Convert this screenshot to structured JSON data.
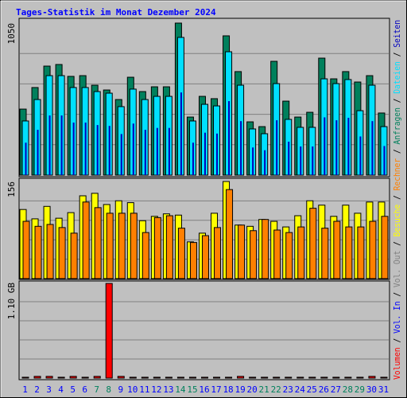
{
  "title": "Tages-Statistik im Monat Dezember 2024",
  "legend_separator": " / ",
  "chart_data": [
    {
      "type": "bar",
      "ylim": [
        0,
        1050
      ],
      "yticks": [
        1050
      ],
      "series": [
        {
          "name": "Anfragen",
          "color": "#00805c",
          "values": [
            456,
            605,
            753,
            764,
            682,
            687,
            621,
            588,
            522,
            676,
            577,
            610,
            610,
            1050,
            401,
            544,
            528,
            962,
            715,
            368,
            335,
            786,
            511,
            401,
            434,
            808,
            665,
            715,
            643,
            687,
            429
          ]
        },
        {
          "name": "Dateien",
          "color": "#00e0ff",
          "values": [
            374,
            522,
            687,
            687,
            605,
            605,
            577,
            566,
            473,
            594,
            522,
            544,
            544,
            951,
            374,
            489,
            478,
            852,
            621,
            319,
            286,
            632,
            385,
            330,
            330,
            665,
            632,
            660,
            445,
            621,
            335
          ]
        },
        {
          "name": "Seiten",
          "color": "#0000c0",
          "values": [
            224,
            313,
            412,
            412,
            363,
            363,
            346,
            340,
            284,
            356,
            313,
            326,
            326,
            571,
            224,
            293,
            287,
            511,
            373,
            191,
            172,
            379,
            231,
            198,
            198,
            399,
            379,
            396,
            267,
            373,
            201
          ]
        }
      ]
    },
    {
      "type": "bar",
      "ylim": [
        0,
        156
      ],
      "yticks": [
        156
      ],
      "series": [
        {
          "name": "Besuche",
          "color": "#ffff00",
          "values": [
            111,
            96,
            116,
            97,
            106,
            133,
            137,
            119,
            125,
            122,
            93,
            100,
            104,
            102,
            59,
            73,
            105,
            156,
            86,
            84,
            95,
            92,
            83,
            101,
            125,
            118,
            100,
            118,
            105,
            123,
            123
          ]
        },
        {
          "name": "Rechner",
          "color": "#ff8000",
          "values": [
            92,
            84,
            87,
            82,
            73,
            123,
            114,
            105,
            105,
            105,
            74,
            98,
            101,
            81,
            58,
            69,
            82,
            143,
            86,
            77,
            95,
            78,
            74,
            83,
            113,
            81,
            92,
            83,
            83,
            92,
            100
          ]
        }
      ]
    },
    {
      "type": "bar",
      "ylim": [
        0,
        1.1
      ],
      "yticks": [
        {
          "value": 1.1,
          "label": "1.10 GB"
        }
      ],
      "categories": [
        "1",
        "2",
        "3",
        "4",
        "5",
        "6",
        "7",
        "8",
        "9",
        "10",
        "11",
        "12",
        "13",
        "14",
        "15",
        "16",
        "17",
        "18",
        "19",
        "20",
        "21",
        "22",
        "23",
        "24",
        "25",
        "26",
        "27",
        "28",
        "29",
        "30",
        "31"
      ],
      "category_colors": [
        "#0000ff",
        "#0000ff",
        "#0000ff",
        "#0000ff",
        "#0000ff",
        "#0000ff",
        "#00805c",
        "#00805c",
        "#0000ff",
        "#0000ff",
        "#0000ff",
        "#0000ff",
        "#0000ff",
        "#00805c",
        "#00805c",
        "#0000ff",
        "#0000ff",
        "#0000ff",
        "#0000ff",
        "#0000ff",
        "#00805c",
        "#00805c",
        "#0000ff",
        "#0000ff",
        "#0000ff",
        "#0000ff",
        "#0000ff",
        "#00805c",
        "#00805c",
        "#0000ff",
        "#0000ff"
      ],
      "series": [
        {
          "name": "Volumen",
          "color": "#ff0000",
          "values": [
            0.01,
            0.02,
            0.02,
            0.01,
            0.02,
            0.01,
            0.02,
            1.09,
            0.02,
            0.01,
            0.01,
            0.01,
            0.01,
            0.01,
            0.01,
            0.01,
            0.01,
            0.01,
            0.02,
            0.01,
            0.01,
            0.01,
            0.01,
            0.01,
            0.01,
            0.01,
            0.01,
            0.01,
            0.01,
            0.02,
            0.01
          ]
        }
      ],
      "legend_only": [
        {
          "name": "Vol. In",
          "color": "#0000ff"
        },
        {
          "name": "Vol. Out",
          "color": "#808080"
        }
      ]
    }
  ]
}
